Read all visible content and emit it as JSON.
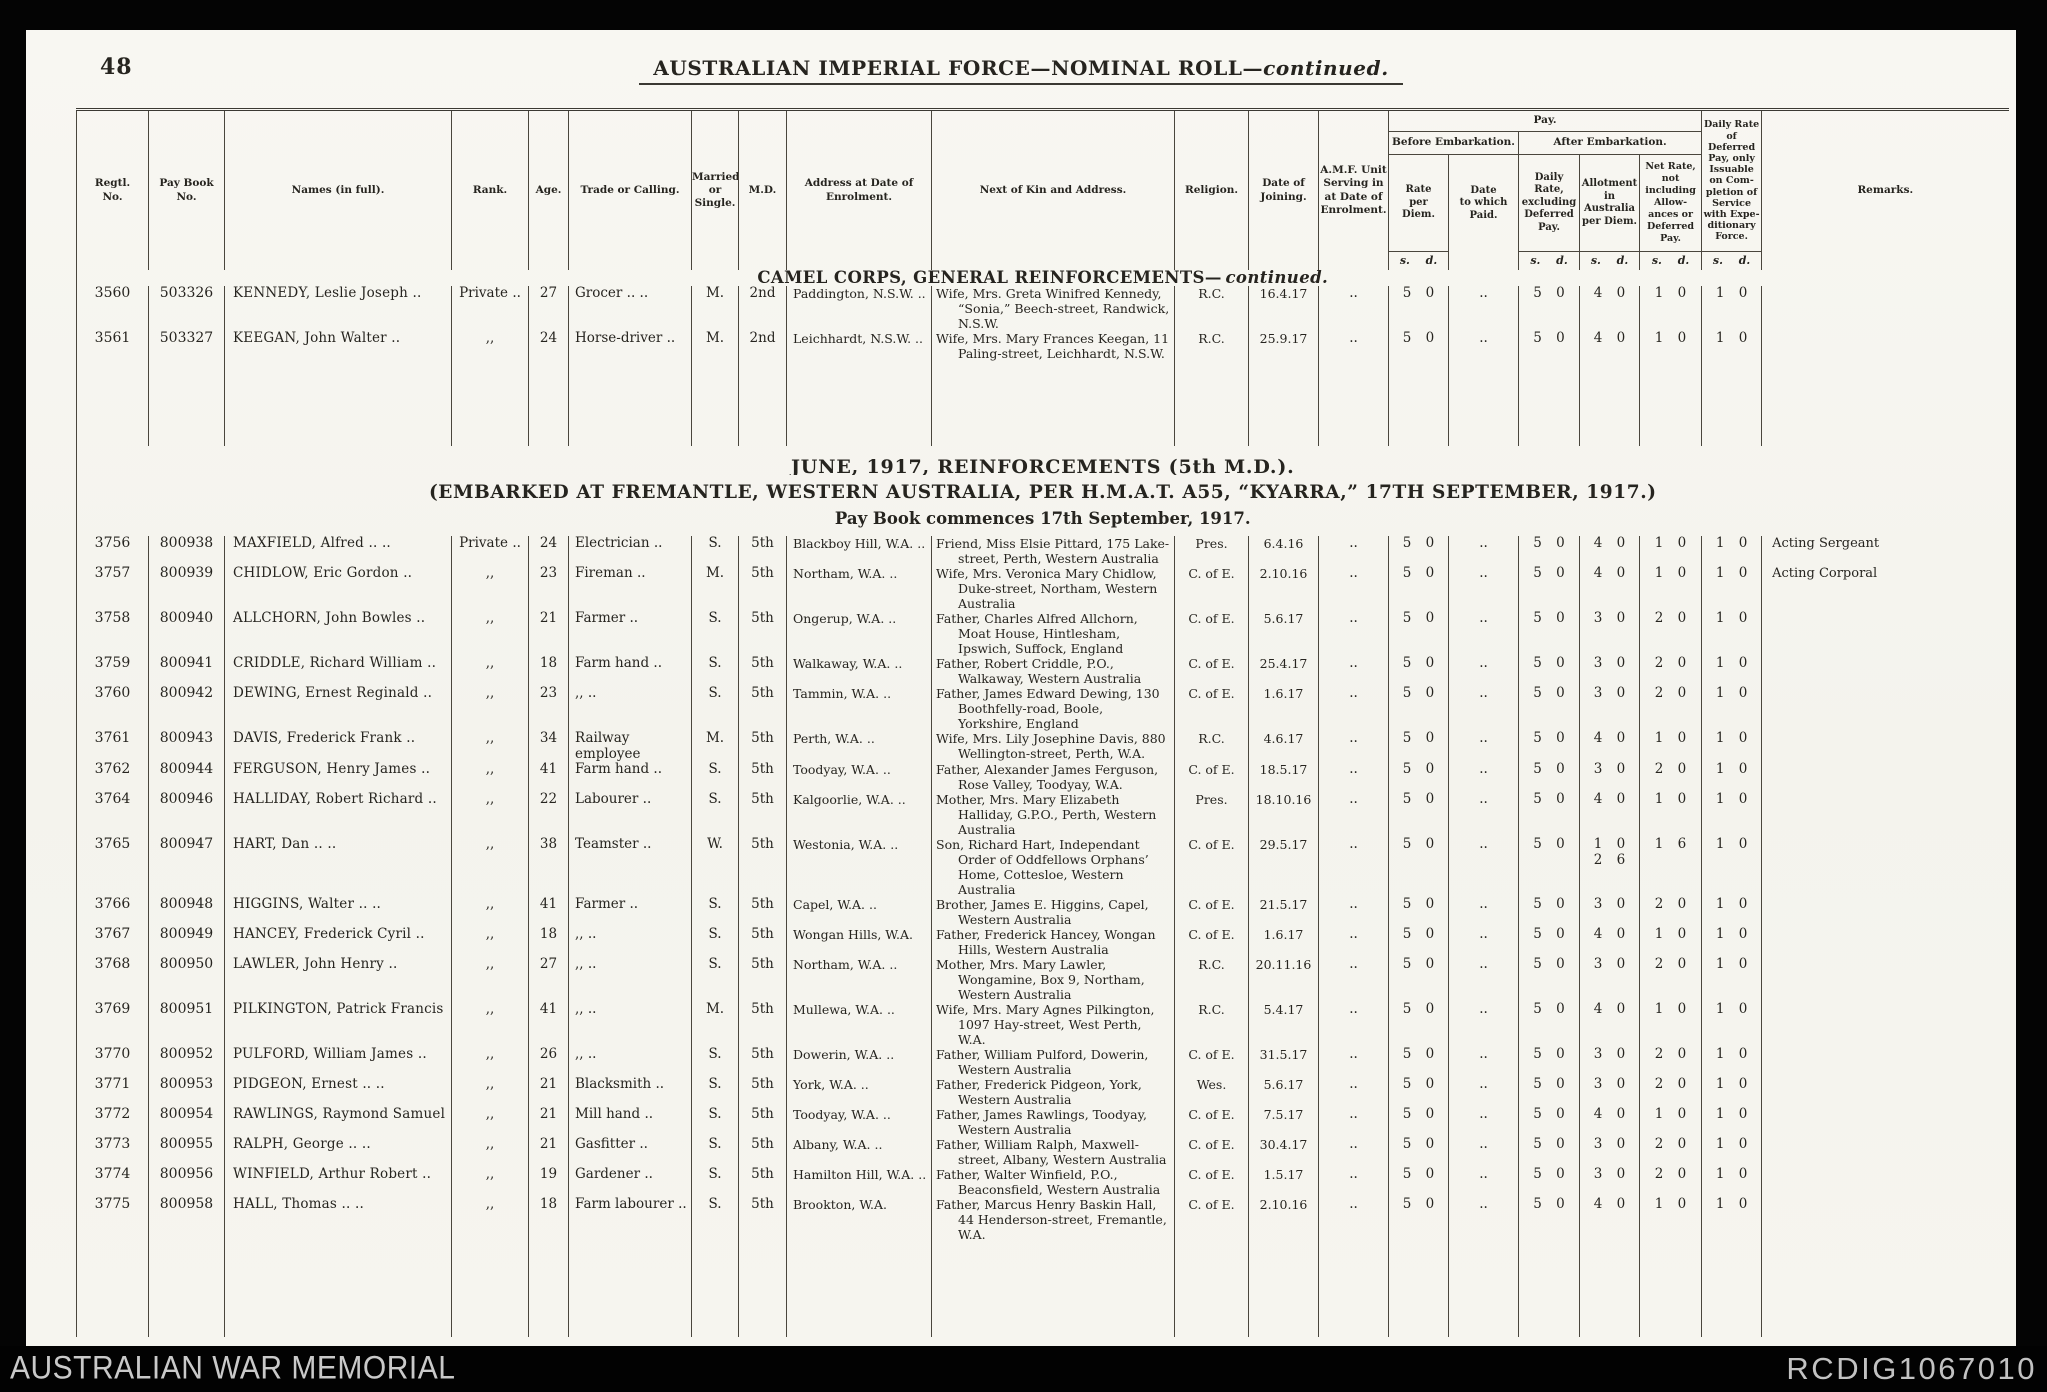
{
  "page": {
    "number": "48",
    "title_main": "AUSTRALIAN IMPERIAL FORCE—NOMINAL ROLL—",
    "title_suffix": "continued."
  },
  "footer": {
    "left": "AUSTRALIAN WAR MEMORIAL",
    "right": "RCDIG1067010"
  },
  "table": {
    "headers": {
      "regtl": "Regtl.\nNo.",
      "paybook": "Pay Book\nNo.",
      "names": "Names (in full).",
      "rank": "Rank.",
      "age": "Age.",
      "trade": "Trade or Calling.",
      "married": "Married\nor\nSingle.",
      "md": "M.D.",
      "address": "Address at Date of Enrolment.",
      "kin": "Next of Kin and Address.",
      "religion": "Religion.",
      "joined": "Date of\nJoining.",
      "amf": "A.M.F. Unit\nServing in\nat Date of\nEnrolment.",
      "pay": "Pay.",
      "before_embark": "Before Embarkation.",
      "after_embark": "After Embarkation.",
      "rate": "Rate\nper\nDiem.",
      "date_paid": "Date\nto which\nPaid.",
      "daily": "Daily\nRate,\nexcluding\nDeferred\nPay.",
      "allot": "Allotment\nin\nAustralia\nper Diem.",
      "net": "Net Rate,\nnot\nincluding\nAllow-\nances or\nDeferred\nPay.",
      "deferred": "Daily Rate\nof\nDeferred\nPay, only\nIssuable\non Com-\npletion of\nService\nwith Expe-\nditionary\nForce.",
      "remarks": "Remarks.",
      "sd": "s. d."
    },
    "sections": [
      {
        "heading_lines": [
          {
            "text": "CAMEL CORPS, GENERAL REINFORCEMENTS—",
            "em": "continued.",
            "size": "h-md"
          }
        ],
        "rows": [
          {
            "regtl": "3560",
            "paybook": "503326",
            "name": "KENNEDY, Leslie Joseph ..",
            "rank": "Private ..",
            "age": "27",
            "trade": "Grocer .. ..",
            "married": "M.",
            "md": "2nd",
            "address": "Paddington, N.S.W. ..",
            "kin": "Wife, Mrs. Greta Winifred Kennedy, “Sonia,” Beech-street, Randwick, N.S.W.",
            "religion": "R.C.",
            "joined": "16.4.17",
            "amf": "..",
            "rate": "5 0",
            "date_paid": "..",
            "daily": "5 0",
            "allot": "4 0",
            "net": "1 0",
            "deferred": "1 0",
            "remarks": ""
          },
          {
            "regtl": "3561",
            "paybook": "503327",
            "name": "KEEGAN, John Walter ..",
            "rank": ",,",
            "age": "24",
            "trade": "Horse-driver ..",
            "married": "M.",
            "md": "2nd",
            "address": "Leichhardt, N.S.W. ..",
            "kin": "Wife, Mrs. Mary Frances Keegan, 11 Paling-street, Leichhardt, N.S.W.",
            "religion": "R.C.",
            "joined": "25.9.17",
            "amf": "..",
            "rate": "5 0",
            "date_paid": "..",
            "daily": "5 0",
            "allot": "4 0",
            "net": "1 0",
            "deferred": "1 0",
            "remarks": ""
          }
        ],
        "gap_after": 85
      },
      {
        "heading_lines": [
          {
            "text": "JUNE, 1917, REINFORCEMENTS (5th M.D.).",
            "size": "h-lg"
          },
          {
            "text": "(EMBARKED AT FREMANTLE, WESTERN AUSTRALIA, PER H.M.A.T. A55, “KYARRA,” 17TH SEPTEMBER, 1917.)",
            "size": "h-lg2"
          },
          {
            "text": "Pay Book commences 17th September, 1917.",
            "size": "h-pb"
          }
        ],
        "rows": [
          {
            "regtl": "3756",
            "paybook": "800938",
            "name": "MAXFIELD, Alfred .. ..",
            "rank": "Private ..",
            "age": "24",
            "trade": "Electrician ..",
            "married": "S.",
            "md": "5th",
            "address": "Blackboy Hill, W.A. ..",
            "kin": "Friend, Miss Elsie Pittard, 175 Lake-street, Perth, Western Australia",
            "religion": "Pres.",
            "joined": "6.4.16",
            "amf": "..",
            "rate": "5 0",
            "date_paid": "..",
            "daily": "5 0",
            "allot": "4 0",
            "net": "1 0",
            "deferred": "1 0",
            "remarks": "Acting Sergeant"
          },
          {
            "regtl": "3757",
            "paybook": "800939",
            "name": "CHIDLOW, Eric Gordon ..",
            "rank": ",,",
            "age": "23",
            "trade": "Fireman ..",
            "married": "M.",
            "md": "5th",
            "address": "Northam, W.A. ..",
            "kin": "Wife, Mrs. Veronica Mary Chidlow, Duke-street, Northam, Western Australia",
            "religion": "C. of E.",
            "joined": "2.10.16",
            "amf": "..",
            "rate": "5 0",
            "date_paid": "..",
            "daily": "5 0",
            "allot": "4 0",
            "net": "1 0",
            "deferred": "1 0",
            "remarks": "Acting Corporal"
          },
          {
            "regtl": "3758",
            "paybook": "800940",
            "name": "ALLCHORN, John Bowles ..",
            "rank": ",,",
            "age": "21",
            "trade": "Farmer ..",
            "married": "S.",
            "md": "5th",
            "address": "Ongerup, W.A. ..",
            "kin": "Father, Charles Alfred Allchorn, Moat House, Hintlesham, Ipswich, Suffock, England",
            "religion": "C. of E.",
            "joined": "5.6.17",
            "amf": "..",
            "rate": "5 0",
            "date_paid": "..",
            "daily": "5 0",
            "allot": "3 0",
            "net": "2 0",
            "deferred": "1 0",
            "remarks": ""
          },
          {
            "regtl": "3759",
            "paybook": "800941",
            "name": "CRIDDLE, Richard William ..",
            "rank": ",,",
            "age": "18",
            "trade": "Farm hand ..",
            "married": "S.",
            "md": "5th",
            "address": "Walkaway, W.A. ..",
            "kin": "Father, Robert Criddle, P.O., Walkaway, Western Australia",
            "religion": "C. of E.",
            "joined": "25.4.17",
            "amf": "..",
            "rate": "5 0",
            "date_paid": "..",
            "daily": "5 0",
            "allot": "3 0",
            "net": "2 0",
            "deferred": "1 0",
            "remarks": ""
          },
          {
            "regtl": "3760",
            "paybook": "800942",
            "name": "DEWING, Ernest Reginald ..",
            "rank": ",,",
            "age": "23",
            "trade": ",, ..",
            "married": "S.",
            "md": "5th",
            "address": "Tammin, W.A. ..",
            "kin": "Father, James Edward Dewing, 130 Boothfelly-road, Boole, Yorkshire, England",
            "religion": "C. of E.",
            "joined": "1.6.17",
            "amf": "..",
            "rate": "5 0",
            "date_paid": "..",
            "daily": "5 0",
            "allot": "3 0",
            "net": "2 0",
            "deferred": "1 0",
            "remarks": ""
          },
          {
            "regtl": "3761",
            "paybook": "800943",
            "name": "DAVIS, Frederick Frank ..",
            "rank": ",,",
            "age": "34",
            "trade": "Railway employee",
            "married": "M.",
            "md": "5th",
            "address": "Perth, W.A. ..",
            "kin": "Wife, Mrs. Lily Josephine Davis, 880 Wellington-street, Perth, W.A.",
            "religion": "R.C.",
            "joined": "4.6.17",
            "amf": "..",
            "rate": "5 0",
            "date_paid": "..",
            "daily": "5 0",
            "allot": "4 0",
            "net": "1 0",
            "deferred": "1 0",
            "remarks": ""
          },
          {
            "regtl": "3762",
            "paybook": "800944",
            "name": "FERGUSON, Henry James ..",
            "rank": ",,",
            "age": "41",
            "trade": "Farm hand ..",
            "married": "S.",
            "md": "5th",
            "address": "Toodyay, W.A. ..",
            "kin": "Father, Alexander James Ferguson, Rose Valley, Toodyay, W.A.",
            "religion": "C. of E.",
            "joined": "18.5.17",
            "amf": "..",
            "rate": "5 0",
            "date_paid": "..",
            "daily": "5 0",
            "allot": "3 0",
            "net": "2 0",
            "deferred": "1 0",
            "remarks": ""
          },
          {
            "regtl": "3764",
            "paybook": "800946",
            "name": "HALLIDAY, Robert Richard ..",
            "rank": ",,",
            "age": "22",
            "trade": "Labourer ..",
            "married": "S.",
            "md": "5th",
            "address": "Kalgoorlie, W.A. ..",
            "kin": "Mother, Mrs. Mary Elizabeth Halliday, G.P.O., Perth, Western Australia",
            "religion": "Pres.",
            "joined": "18.10.16",
            "amf": "..",
            "rate": "5 0",
            "date_paid": "..",
            "daily": "5 0",
            "allot": "4 0",
            "net": "1 0",
            "deferred": "1 0",
            "remarks": ""
          },
          {
            "regtl": "3765",
            "paybook": "800947",
            "name": "HART, Dan .. ..",
            "rank": ",,",
            "age": "38",
            "trade": "Teamster ..",
            "married": "W.",
            "md": "5th",
            "address": "Westonia, W.A. ..",
            "kin": "Son, Richard Hart, Independant Order of Oddfellows Orphans’ Home, Cottesloe, Western Australia",
            "religion": "C. of E.",
            "joined": "29.5.17",
            "amf": "..",
            "rate": "5 0",
            "date_paid": "..",
            "daily": "5 0",
            "allot": "1 0\n2 6",
            "net": "1 6",
            "deferred": "1 0",
            "remarks": ""
          },
          {
            "regtl": "3766",
            "paybook": "800948",
            "name": "HIGGINS, Walter .. ..",
            "rank": ",,",
            "age": "41",
            "trade": "Farmer ..",
            "married": "S.",
            "md": "5th",
            "address": "Capel, W.A. ..",
            "kin": "Brother, James E. Higgins, Capel, Western Australia",
            "religion": "C. of E.",
            "joined": "21.5.17",
            "amf": "..",
            "rate": "5 0",
            "date_paid": "..",
            "daily": "5 0",
            "allot": "3 0",
            "net": "2 0",
            "deferred": "1 0",
            "remarks": ""
          },
          {
            "regtl": "3767",
            "paybook": "800949",
            "name": "HANCEY, Frederick Cyril ..",
            "rank": ",,",
            "age": "18",
            "trade": ",, ..",
            "married": "S.",
            "md": "5th",
            "address": "Wongan Hills, W.A.",
            "kin": "Father, Frederick Hancey, Wongan Hills, Western Australia",
            "religion": "C. of E.",
            "joined": "1.6.17",
            "amf": "..",
            "rate": "5 0",
            "date_paid": "..",
            "daily": "5 0",
            "allot": "4 0",
            "net": "1 0",
            "deferred": "1 0",
            "remarks": ""
          },
          {
            "regtl": "3768",
            "paybook": "800950",
            "name": "LAWLER, John Henry ..",
            "rank": ",,",
            "age": "27",
            "trade": ",, ..",
            "married": "S.",
            "md": "5th",
            "address": "Northam, W.A. ..",
            "kin": "Mother, Mrs. Mary Lawler, Wongamine, Box 9, Northam, Western Australia",
            "religion": "R.C.",
            "joined": "20.11.16",
            "amf": "..",
            "rate": "5 0",
            "date_paid": "..",
            "daily": "5 0",
            "allot": "3 0",
            "net": "2 0",
            "deferred": "1 0",
            "remarks": ""
          },
          {
            "regtl": "3769",
            "paybook": "800951",
            "name": "PILKINGTON, Patrick Francis",
            "rank": ",,",
            "age": "41",
            "trade": ",, ..",
            "married": "M.",
            "md": "5th",
            "address": "Mullewa, W.A. ..",
            "kin": "Wife, Mrs. Mary Agnes Pilkington, 1097 Hay-street, West Perth, W.A.",
            "religion": "R.C.",
            "joined": "5.4.17",
            "amf": "..",
            "rate": "5 0",
            "date_paid": "..",
            "daily": "5 0",
            "allot": "4 0",
            "net": "1 0",
            "deferred": "1 0",
            "remarks": ""
          },
          {
            "regtl": "3770",
            "paybook": "800952",
            "name": "PULFORD, William James ..",
            "rank": ",,",
            "age": "26",
            "trade": ",, ..",
            "married": "S.",
            "md": "5th",
            "address": "Dowerin, W.A. ..",
            "kin": "Father, William Pulford, Dowerin, Western Australia",
            "religion": "C. of E.",
            "joined": "31.5.17",
            "amf": "..",
            "rate": "5 0",
            "date_paid": "..",
            "daily": "5 0",
            "allot": "3 0",
            "net": "2 0",
            "deferred": "1 0",
            "remarks": ""
          },
          {
            "regtl": "3771",
            "paybook": "800953",
            "name": "PIDGEON, Ernest .. ..",
            "rank": ",,",
            "age": "21",
            "trade": "Blacksmith ..",
            "married": "S.",
            "md": "5th",
            "address": "York, W.A. ..",
            "kin": "Father, Frederick Pidgeon, York, Western Australia",
            "religion": "Wes.",
            "joined": "5.6.17",
            "amf": "..",
            "rate": "5 0",
            "date_paid": "..",
            "daily": "5 0",
            "allot": "3 0",
            "net": "2 0",
            "deferred": "1 0",
            "remarks": ""
          },
          {
            "regtl": "3772",
            "paybook": "800954",
            "name": "RAWLINGS, Raymond Samuel",
            "rank": ",,",
            "age": "21",
            "trade": "Mill hand ..",
            "married": "S.",
            "md": "5th",
            "address": "Toodyay, W.A. ..",
            "kin": "Father, James Rawlings, Toodyay, Western Australia",
            "religion": "C. of E.",
            "joined": "7.5.17",
            "amf": "..",
            "rate": "5 0",
            "date_paid": "..",
            "daily": "5 0",
            "allot": "4 0",
            "net": "1 0",
            "deferred": "1 0",
            "remarks": ""
          },
          {
            "regtl": "3773",
            "paybook": "800955",
            "name": "RALPH, George .. ..",
            "rank": ",,",
            "age": "21",
            "trade": "Gasfitter ..",
            "married": "S.",
            "md": "5th",
            "address": "Albany, W.A. ..",
            "kin": "Father, William Ralph, Maxwell-street, Albany, Western Australia",
            "religion": "C. of E.",
            "joined": "30.4.17",
            "amf": "..",
            "rate": "5 0",
            "date_paid": "..",
            "daily": "5 0",
            "allot": "3 0",
            "net": "2 0",
            "deferred": "1 0",
            "remarks": ""
          },
          {
            "regtl": "3774",
            "paybook": "800956",
            "name": "WINFIELD, Arthur Robert ..",
            "rank": ",,",
            "age": "19",
            "trade": "Gardener ..",
            "married": "S.",
            "md": "5th",
            "address": "Hamilton Hill, W.A. ..",
            "kin": "Father, Walter Winfield, P.O., Beaconsfield, Western Australia",
            "religion": "C. of E.",
            "joined": "1.5.17",
            "amf": "..",
            "rate": "5 0",
            "date_paid": "..",
            "daily": "5 0",
            "allot": "3 0",
            "net": "2 0",
            "deferred": "1 0",
            "remarks": ""
          },
          {
            "regtl": "3775",
            "paybook": "800958",
            "name": "HALL, Thomas .. ..",
            "rank": ",,",
            "age": "18",
            "trade": "Farm labourer ..",
            "married": "S.",
            "md": "5th",
            "address": "Brookton, W.A.",
            "kin": "Father, Marcus Henry Baskin Hall, 44 Henderson-street, Fremantle, W.A.",
            "religion": "C. of E.",
            "joined": "2.10.16",
            "amf": "..",
            "rate": "5 0",
            "date_paid": "..",
            "daily": "5 0",
            "allot": "4 0",
            "net": "1 0",
            "deferred": "1 0",
            "remarks": ""
          }
        ],
        "gap_after": 95
      }
    ]
  }
}
